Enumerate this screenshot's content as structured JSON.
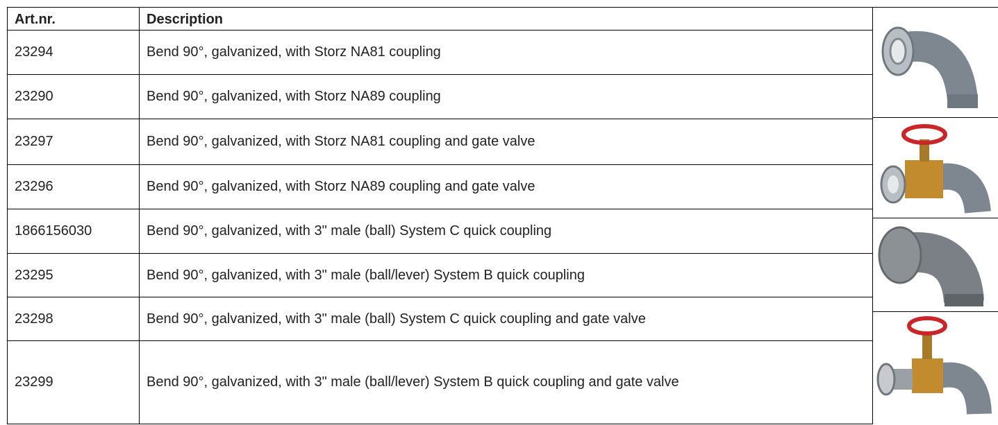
{
  "table": {
    "header": [
      "Art.nr.",
      "Description"
    ],
    "rows": [
      [
        "23294",
        "Bend 90°, galvanized, with Storz NA81 coupling"
      ],
      [
        "23290",
        "Bend 90°, galvanized, with Storz NA89 coupling"
      ],
      [
        "23297",
        "Bend 90°, galvanized, with Storz NA81 coupling and gate valve"
      ],
      [
        "23296",
        "Bend 90°, galvanized, with Storz NA89 coupling and gate valve"
      ],
      [
        "1866156030",
        "Bend 90°, galvanized, with 3\" male (ball) System C quick coupling"
      ],
      [
        "23295",
        "Bend 90°, galvanized, with 3\" male (ball/lever) System B quick coupling"
      ],
      [
        "23298",
        "Bend 90°, galvanized, with 3\" male (ball) System C quick coupling and gate valve"
      ],
      [
        "23299",
        "Bend 90°, galvanized, with 3\" male (ball/lever) System B quick coupling and gate valve"
      ]
    ]
  }
}
